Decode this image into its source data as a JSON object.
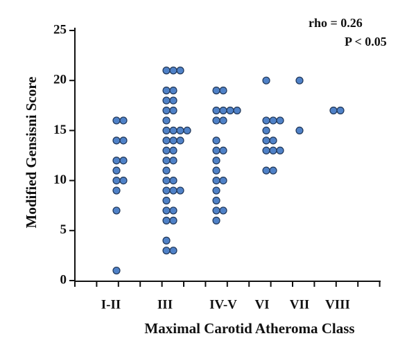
{
  "chart_data": {
    "type": "dot",
    "annotations": [
      "rho   = 0.26",
      "P < 0.05"
    ],
    "x_label": "Maximal Carotid Atheroma Class",
    "y_label": "Modified Gensisni Score",
    "categories": [
      "I-II",
      "III",
      "IV-V",
      "VI",
      "VII",
      "VIII"
    ],
    "values": [
      [
        16,
        16,
        14,
        14,
        12,
        12,
        11,
        10,
        10,
        9,
        7,
        1
      ],
      [
        21,
        21,
        21,
        19,
        19,
        18,
        18,
        17,
        17,
        16,
        15,
        15,
        15,
        15,
        14,
        14,
        14,
        13,
        13,
        12,
        12,
        11,
        10,
        10,
        9,
        9,
        9,
        8,
        7,
        7,
        6,
        6,
        4,
        3,
        3
      ],
      [
        19,
        19,
        17,
        17,
        17,
        17,
        16,
        16,
        14,
        13,
        13,
        12,
        11,
        10,
        10,
        9,
        8,
        7,
        7,
        6
      ],
      [
        20,
        16,
        16,
        16,
        15,
        14,
        14,
        13,
        13,
        13,
        11,
        11
      ],
      [
        20,
        15
      ],
      [
        17,
        17
      ]
    ],
    "color": "#4f81c7",
    "ylim": [
      0,
      25
    ],
    "yticks": [
      0,
      5,
      10,
      15,
      20,
      25
    ]
  }
}
